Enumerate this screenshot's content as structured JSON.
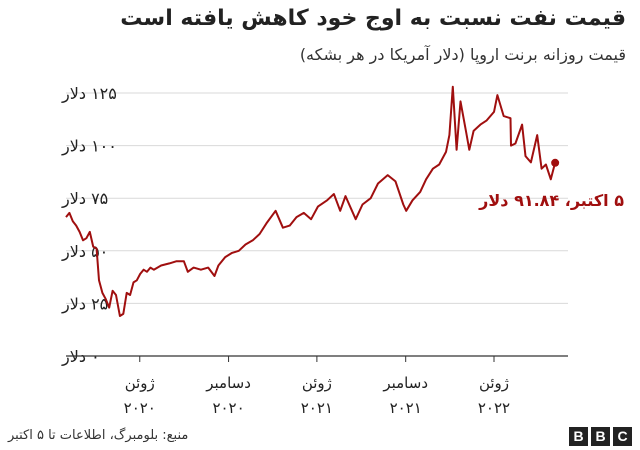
{
  "title": "قیمت نفت نسبت به اوج خود کاهش یافته است",
  "subtitle": "قیمت روزانه برنت اروپا (دلار آمریکا در هر بشکه)",
  "source": "منبع: بلومبرگ، اطلاعات تا ۵ اکتبر",
  "logo": [
    "B",
    "B",
    "C"
  ],
  "colors": {
    "line": "#a00f0f",
    "grid": "#d9d9d9",
    "axis": "#333333",
    "text": "#222222"
  },
  "chart_data": {
    "type": "line",
    "title": "قیمت نفت نسبت به اوج خود کاهش یافته است",
    "subtitle": "قیمت روزانه برنت اروپا (دلار آمریکا در هر بشکه)",
    "xlabel": "",
    "ylabel": "",
    "ylim": [
      0,
      125
    ],
    "yticks": [
      {
        "value": 0,
        "label": "۰ دلار"
      },
      {
        "value": 25,
        "label": "۲۵ دلار"
      },
      {
        "value": 50,
        "label": "۵۰ دلار"
      },
      {
        "value": 75,
        "label": "۷۵ دلار"
      },
      {
        "value": 100,
        "label": "۱۰۰ دلار"
      },
      {
        "value": 125,
        "label": "۱۲۵ دلار"
      }
    ],
    "xlim": [
      "2020-01-01",
      "2022-10-15"
    ],
    "xticks": [
      {
        "date": "2020-06-01",
        "label1": "ژوئن",
        "label2": "۲۰۲۰"
      },
      {
        "date": "2020-12-01",
        "label1": "دسامبر",
        "label2": "۲۰۲۰"
      },
      {
        "date": "2021-06-01",
        "label1": "ژوئن",
        "label2": "۲۰۲۱"
      },
      {
        "date": "2021-12-01",
        "label1": "دسامبر",
        "label2": "۲۰۲۱"
      },
      {
        "date": "2022-06-01",
        "label1": "ژوئن",
        "label2": "۲۰۲۲"
      }
    ],
    "grid": true,
    "annotation": {
      "date": "2022-10-05",
      "value": 91.84,
      "label": "۵ اکتبر، ۹۱.۸۴ دلار"
    },
    "series": [
      {
        "points": [
          [
            "2020-01-01",
            66
          ],
          [
            "2020-01-08",
            68
          ],
          [
            "2020-01-15",
            64
          ],
          [
            "2020-01-22",
            62
          ],
          [
            "2020-01-29",
            59
          ],
          [
            "2020-02-05",
            55
          ],
          [
            "2020-02-12",
            56
          ],
          [
            "2020-02-19",
            59
          ],
          [
            "2020-02-26",
            52
          ],
          [
            "2020-03-04",
            51
          ],
          [
            "2020-03-09",
            36
          ],
          [
            "2020-03-16",
            30
          ],
          [
            "2020-03-23",
            27
          ],
          [
            "2020-03-30",
            23
          ],
          [
            "2020-04-06",
            31
          ],
          [
            "2020-04-13",
            29
          ],
          [
            "2020-04-21",
            19
          ],
          [
            "2020-04-28",
            20
          ],
          [
            "2020-05-05",
            30
          ],
          [
            "2020-05-12",
            29
          ],
          [
            "2020-05-19",
            35
          ],
          [
            "2020-05-26",
            36
          ],
          [
            "2020-06-02",
            39
          ],
          [
            "2020-06-09",
            41
          ],
          [
            "2020-06-16",
            40
          ],
          [
            "2020-06-23",
            42
          ],
          [
            "2020-06-30",
            41
          ],
          [
            "2020-07-15",
            43
          ],
          [
            "2020-08-01",
            44
          ],
          [
            "2020-08-15",
            45
          ],
          [
            "2020-08-31",
            45
          ],
          [
            "2020-09-08",
            40
          ],
          [
            "2020-09-20",
            42
          ],
          [
            "2020-10-05",
            41
          ],
          [
            "2020-10-20",
            42
          ],
          [
            "2020-11-02",
            38
          ],
          [
            "2020-11-10",
            43
          ],
          [
            "2020-11-24",
            47
          ],
          [
            "2020-12-08",
            49
          ],
          [
            "2020-12-22",
            50
          ],
          [
            "2021-01-05",
            53
          ],
          [
            "2021-01-20",
            55
          ],
          [
            "2021-02-03",
            58
          ],
          [
            "2021-02-17",
            63
          ],
          [
            "2021-03-08",
            69
          ],
          [
            "2021-03-23",
            61
          ],
          [
            "2021-04-06",
            62
          ],
          [
            "2021-04-20",
            66
          ],
          [
            "2021-05-05",
            68
          ],
          [
            "2021-05-20",
            65
          ],
          [
            "2021-06-03",
            71
          ],
          [
            "2021-06-22",
            74
          ],
          [
            "2021-07-06",
            77
          ],
          [
            "2021-07-19",
            69
          ],
          [
            "2021-07-30",
            76
          ],
          [
            "2021-08-20",
            65
          ],
          [
            "2021-09-03",
            72
          ],
          [
            "2021-09-20",
            75
          ],
          [
            "2021-10-05",
            82
          ],
          [
            "2021-10-25",
            86
          ],
          [
            "2021-11-10",
            83
          ],
          [
            "2021-11-26",
            72
          ],
          [
            "2021-12-02",
            69
          ],
          [
            "2021-12-15",
            74
          ],
          [
            "2021-12-31",
            78
          ],
          [
            "2022-01-12",
            84
          ],
          [
            "2022-01-26",
            89
          ],
          [
            "2022-02-08",
            91
          ],
          [
            "2022-02-22",
            97
          ],
          [
            "2022-03-01",
            105
          ],
          [
            "2022-03-08",
            128
          ],
          [
            "2022-03-16",
            98
          ],
          [
            "2022-03-24",
            121
          ],
          [
            "2022-04-05",
            106
          ],
          [
            "2022-04-11",
            98
          ],
          [
            "2022-04-20",
            107
          ],
          [
            "2022-05-04",
            110
          ],
          [
            "2022-05-17",
            112
          ],
          [
            "2022-06-01",
            116
          ],
          [
            "2022-06-08",
            124
          ],
          [
            "2022-06-21",
            114
          ],
          [
            "2022-07-05",
            113
          ],
          [
            "2022-07-06",
            100
          ],
          [
            "2022-07-15",
            101
          ],
          [
            "2022-07-29",
            110
          ],
          [
            "2022-08-05",
            95
          ],
          [
            "2022-08-16",
            92
          ],
          [
            "2022-08-29",
            105
          ],
          [
            "2022-09-07",
            89
          ],
          [
            "2022-09-16",
            91
          ],
          [
            "2022-09-26",
            84
          ],
          [
            "2022-10-05",
            91.84
          ]
        ]
      }
    ]
  }
}
